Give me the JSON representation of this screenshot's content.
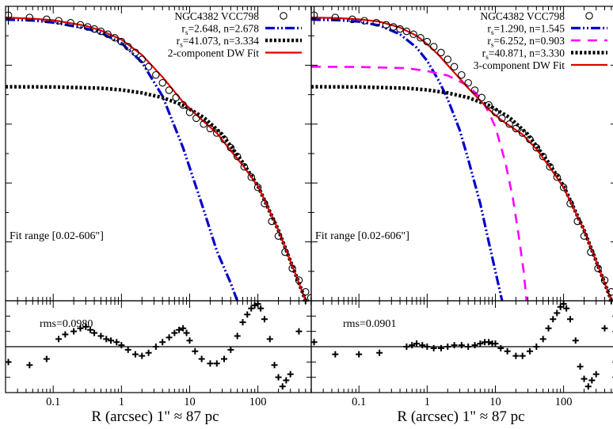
{
  "figure": {
    "xlabel": "R (arcsec)  1\" ≈  87 pc",
    "xticks": [
      0.1,
      1,
      10,
      100
    ],
    "xtick_labels": [
      "0.1",
      "1",
      "10",
      "100"
    ]
  },
  "chart_data": [
    {
      "type": "line",
      "panel": "left",
      "galaxy_label": "NGC4382 VCC798",
      "annotation": "Fit range [0.02-606\"]",
      "x_scale": "log",
      "xlim": [
        0.02,
        606
      ],
      "y_scale": "linear",
      "ylim": [
        0,
        1
      ],
      "ylim_note": "y-axis unlabeled; normalized",
      "legend_position": "top-right",
      "legend": [
        {
          "label_main": "NGC4382 VCC798",
          "sub": "",
          "tail": "",
          "style": "circle",
          "color": "#000000"
        },
        {
          "label_main": "r",
          "sub": "s",
          "tail": "=2.648, n=2.678",
          "style": "dashdotdot",
          "color": "#0000cc"
        },
        {
          "label_main": "r",
          "sub": "s",
          "tail": "=41.073, n=3.334",
          "style": "dotted-thick",
          "color": "#000000"
        },
        {
          "label_main": "2-component DW Fit",
          "sub": "",
          "tail": "",
          "style": "solid",
          "color": "#e00000"
        }
      ],
      "series": [
        {
          "name": "r_s=2.648, n=2.678",
          "color": "#0000cc",
          "x": [
            0.02,
            0.05,
            0.1,
            0.3,
            0.5,
            1,
            2,
            4,
            8,
            15,
            25,
            40,
            60
          ],
          "y": [
            0.955,
            0.952,
            0.945,
            0.925,
            0.91,
            0.875,
            0.81,
            0.695,
            0.52,
            0.33,
            0.17,
            0.06,
            -0.05
          ]
        },
        {
          "name": "r_s=41.073, n=3.334",
          "color": "#000000",
          "x": [
            0.02,
            0.1,
            0.5,
            1,
            2,
            4,
            8,
            16,
            30,
            60,
            100,
            200,
            400,
            606
          ],
          "y": [
            0.727,
            0.726,
            0.722,
            0.716,
            0.706,
            0.69,
            0.664,
            0.623,
            0.565,
            0.47,
            0.39,
            0.24,
            0.06,
            -0.05
          ]
        },
        {
          "name": "2-component DW Fit",
          "color": "#e00000",
          "x": [
            0.02,
            0.05,
            0.1,
            0.3,
            0.5,
            1,
            2,
            4,
            8,
            15,
            25,
            40,
            60,
            100,
            200,
            400,
            606
          ],
          "y": [
            0.962,
            0.958,
            0.953,
            0.934,
            0.918,
            0.887,
            0.835,
            0.76,
            0.675,
            0.615,
            0.57,
            0.51,
            0.46,
            0.39,
            0.24,
            0.06,
            -0.05
          ]
        }
      ],
      "data_points": {
        "x": [
          0.022,
          0.045,
          0.08,
          0.12,
          0.18,
          0.25,
          0.32,
          0.4,
          0.5,
          0.63,
          0.8,
          1.0,
          1.25,
          1.6,
          2.0,
          2.5,
          3.2,
          4.0,
          5.0,
          6.3,
          8.0,
          10,
          12.5,
          16,
          20,
          25,
          32,
          40,
          50,
          63,
          80,
          100,
          125,
          160,
          200,
          250,
          320,
          400,
          500,
          600
        ],
        "y": [
          0.97,
          0.962,
          0.956,
          0.951,
          0.944,
          0.937,
          0.93,
          0.923,
          0.915,
          0.905,
          0.893,
          0.88,
          0.863,
          0.843,
          0.82,
          0.795,
          0.767,
          0.74,
          0.715,
          0.69,
          0.665,
          0.64,
          0.62,
          0.6,
          0.585,
          0.57,
          0.548,
          0.52,
          0.49,
          0.455,
          0.42,
          0.385,
          0.33,
          0.27,
          0.22,
          0.165,
          0.11,
          0.07,
          0.03,
          0.01
        ]
      },
      "residuals": {
        "rms_label": "rms=0.0980",
        "ylim": [
          -0.3,
          0.3
        ],
        "x": [
          0.022,
          0.045,
          0.08,
          0.12,
          0.15,
          0.2,
          0.25,
          0.3,
          0.35,
          0.4,
          0.5,
          0.6,
          0.7,
          0.85,
          1.0,
          1.25,
          1.6,
          2.0,
          2.5,
          3.2,
          4.0,
          5.0,
          6.0,
          7.0,
          8.0,
          9.0,
          10,
          12,
          15,
          20,
          25,
          32,
          40,
          50,
          60,
          70,
          80,
          90,
          100,
          110,
          125,
          150,
          175,
          200,
          230,
          260,
          300,
          400,
          500
        ],
        "y": [
          -0.1,
          -0.12,
          -0.08,
          0.05,
          0.08,
          0.1,
          0.12,
          0.13,
          0.11,
          0.09,
          0.07,
          0.05,
          0.04,
          0.03,
          0.01,
          -0.02,
          -0.05,
          -0.06,
          -0.04,
          0.0,
          0.03,
          0.06,
          0.09,
          0.11,
          0.12,
          0.09,
          0.04,
          -0.03,
          -0.08,
          -0.11,
          -0.11,
          -0.08,
          -0.02,
          0.07,
          0.16,
          0.21,
          0.25,
          0.27,
          0.28,
          0.25,
          0.18,
          0.05,
          -0.12,
          -0.2,
          -0.26,
          -0.22,
          -0.18,
          0.1,
          0.3
        ]
      }
    },
    {
      "type": "line",
      "panel": "right",
      "galaxy_label": "NGC4382 VCC798",
      "annotation": "Fit range [0.02-606\"]",
      "x_scale": "log",
      "xlim": [
        0.02,
        606
      ],
      "y_scale": "linear",
      "ylim": [
        0,
        1
      ],
      "legend_position": "top-right",
      "legend": [
        {
          "label_main": "NGC4382 VCC798",
          "sub": "",
          "tail": "",
          "style": "circle",
          "color": "#000000"
        },
        {
          "label_main": "r",
          "sub": "s",
          "tail": "=1.290, n=1.545",
          "style": "dashdotdot",
          "color": "#0000cc"
        },
        {
          "label_main": "r",
          "sub": "s",
          "tail": "=6.252, n=0.903",
          "style": "dashed",
          "color": "#ff00ff"
        },
        {
          "label_main": "r",
          "sub": "s",
          "tail": "=40.871, n=3.330",
          "style": "dotted-thick",
          "color": "#000000"
        },
        {
          "label_main": "3-component DW Fit",
          "sub": "",
          "tail": "",
          "style": "solid",
          "color": "#e00000"
        }
      ],
      "series": [
        {
          "name": "r_s=1.290, n=1.545",
          "color": "#0000cc",
          "x": [
            0.02,
            0.05,
            0.1,
            0.2,
            0.4,
            0.7,
            1.0,
            1.5,
            2.0,
            3.0,
            4.0,
            6.0,
            8.0,
            10,
            12,
            14
          ],
          "y": [
            0.955,
            0.953,
            0.948,
            0.935,
            0.905,
            0.86,
            0.815,
            0.745,
            0.685,
            0.58,
            0.48,
            0.33,
            0.2,
            0.1,
            0.02,
            -0.05
          ]
        },
        {
          "name": "r_s=6.252, n=0.903",
          "color": "#ff00ff",
          "x": [
            0.02,
            0.1,
            0.5,
            1.0,
            2.0,
            4.0,
            6.0,
            8.0,
            10,
            14,
            18,
            22,
            26,
            30
          ],
          "y": [
            0.795,
            0.794,
            0.79,
            0.78,
            0.765,
            0.73,
            0.69,
            0.64,
            0.59,
            0.47,
            0.35,
            0.22,
            0.1,
            -0.05
          ]
        },
        {
          "name": "r_s=40.871, n=3.330",
          "color": "#000000",
          "x": [
            0.02,
            0.1,
            0.5,
            1,
            2,
            4,
            8,
            16,
            30,
            60,
            100,
            200,
            400,
            606
          ],
          "y": [
            0.727,
            0.726,
            0.722,
            0.716,
            0.706,
            0.69,
            0.664,
            0.623,
            0.565,
            0.47,
            0.39,
            0.24,
            0.06,
            -0.05
          ]
        },
        {
          "name": "3-component DW Fit",
          "color": "#e00000",
          "x": [
            0.02,
            0.05,
            0.1,
            0.2,
            0.4,
            0.7,
            1.0,
            1.5,
            2.0,
            3.0,
            4.0,
            6.0,
            8.0,
            12,
            16,
            25,
            40,
            60,
            100,
            200,
            400,
            606
          ],
          "y": [
            0.962,
            0.96,
            0.956,
            0.948,
            0.928,
            0.9,
            0.872,
            0.833,
            0.8,
            0.755,
            0.722,
            0.68,
            0.65,
            0.615,
            0.595,
            0.565,
            0.515,
            0.46,
            0.385,
            0.24,
            0.06,
            -0.05
          ]
        }
      ],
      "data_points": {
        "x": [
          0.022,
          0.045,
          0.08,
          0.12,
          0.18,
          0.25,
          0.32,
          0.4,
          0.5,
          0.63,
          0.8,
          1.0,
          1.25,
          1.6,
          2.0,
          2.5,
          3.2,
          4.0,
          5.0,
          6.3,
          8.0,
          10,
          12.5,
          16,
          20,
          25,
          32,
          40,
          50,
          63,
          80,
          100,
          125,
          160,
          200,
          250,
          320,
          400,
          500,
          600
        ],
        "y": [
          0.97,
          0.962,
          0.956,
          0.951,
          0.944,
          0.937,
          0.93,
          0.923,
          0.915,
          0.905,
          0.893,
          0.88,
          0.863,
          0.843,
          0.82,
          0.795,
          0.767,
          0.74,
          0.715,
          0.69,
          0.665,
          0.64,
          0.62,
          0.6,
          0.585,
          0.57,
          0.548,
          0.52,
          0.49,
          0.455,
          0.42,
          0.385,
          0.33,
          0.27,
          0.22,
          0.165,
          0.11,
          0.07,
          0.03,
          0.01
        ]
      },
      "residuals": {
        "rms_label": "rms=0.0901",
        "ylim": [
          -0.3,
          0.3
        ],
        "x": [
          0.022,
          0.045,
          0.1,
          0.2,
          0.5,
          0.6,
          0.7,
          0.85,
          1.0,
          1.25,
          1.6,
          2.0,
          2.5,
          3.2,
          4.0,
          5.0,
          6.0,
          7.0,
          8.0,
          9.0,
          10,
          12,
          15,
          20,
          25,
          32,
          40,
          50,
          60,
          70,
          80,
          90,
          100,
          110,
          125,
          150,
          175,
          200,
          230,
          260,
          300,
          400,
          500
        ],
        "y": [
          0.03,
          -0.05,
          -0.05,
          -0.04,
          0.0,
          0.01,
          0.02,
          0.01,
          0.0,
          -0.01,
          -0.01,
          0.0,
          0.01,
          0.01,
          0.0,
          0.01,
          0.02,
          0.03,
          0.03,
          0.02,
          0.02,
          -0.01,
          -0.03,
          -0.06,
          -0.06,
          -0.03,
          0.0,
          0.05,
          0.12,
          0.18,
          0.22,
          0.26,
          0.28,
          0.25,
          0.18,
          0.04,
          -0.13,
          -0.21,
          -0.26,
          -0.22,
          -0.18,
          0.12,
          0.3
        ]
      }
    }
  ]
}
